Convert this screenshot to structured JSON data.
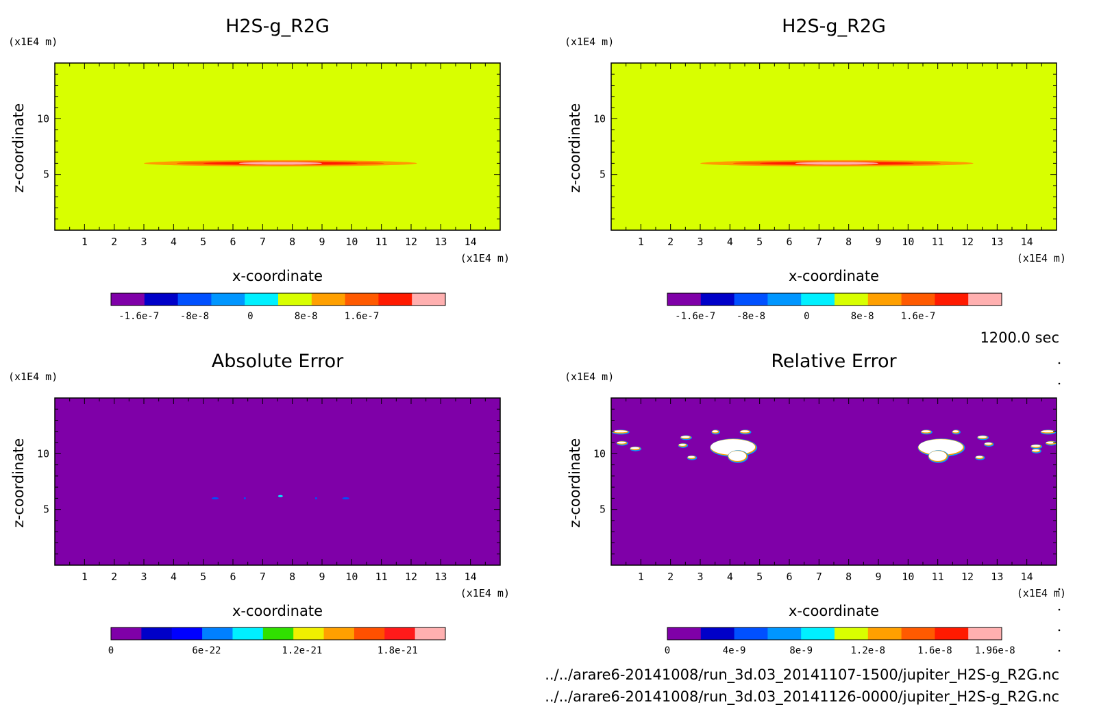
{
  "time_label": "1200.0 sec",
  "files": [
    "../../arare6-20141008/run_3d.03_20141107-1500/jupiter_H2S-g_R2G.nc",
    "../../arare6-20141008/run_3d.03_20141126-0000/jupiter_H2S-g_R2G.nc"
  ],
  "chart_data": [
    {
      "type": "heatmap",
      "title": "H2S-g_R2G",
      "xlabel": "x-coordinate",
      "ylabel": "z-coordinate",
      "x_unit": "(x1E4 m)",
      "y_unit": "(x1E4 m)",
      "xlim": [
        0,
        15
      ],
      "ylim": [
        0,
        15
      ],
      "xticks": [
        "1",
        "2",
        "3",
        "4",
        "5",
        "6",
        "7",
        "8",
        "9",
        "10",
        "11",
        "12",
        "13",
        "14"
      ],
      "yticks": [
        "5",
        "10"
      ],
      "background_color": "#d8ff00",
      "features": [
        {
          "kind": "band",
          "x_center": 7.6,
          "z": 6.0,
          "half_width": 4.6,
          "half_height": 0.28,
          "color": "#ff9a00"
        },
        {
          "kind": "band",
          "x_center": 7.6,
          "z": 6.0,
          "half_width": 3.5,
          "half_height": 0.18,
          "color": "#ff5a00"
        },
        {
          "kind": "band",
          "x_center": 7.6,
          "z": 6.0,
          "half_width": 2.6,
          "half_height": 0.12,
          "color": "#ff1a00"
        },
        {
          "kind": "band",
          "x_center": 7.6,
          "z": 6.0,
          "half_width": 1.4,
          "half_height": 0.06,
          "color": "#ffb0b0"
        }
      ],
      "colorbar": {
        "colors": [
          "#7f00a8",
          "#0000c8",
          "#0050ff",
          "#0096ff",
          "#00f0ff",
          "#d8ff00",
          "#ffa000",
          "#ff5a00",
          "#ff1a00",
          "#ffb0b0"
        ],
        "ticks": [
          {
            "label": "-1.6e-7",
            "value": -1.6e-07
          },
          {
            "label": "-8e-8",
            "value": -8e-08
          },
          {
            "label": "0",
            "value": 0
          },
          {
            "label": "8e-8",
            "value": 8e-08
          },
          {
            "label": "1.6e-7",
            "value": 1.6e-07
          }
        ],
        "range": [
          -2e-07,
          2.8e-07
        ]
      }
    },
    {
      "type": "heatmap",
      "title": "H2S-g_R2G",
      "xlabel": "x-coordinate",
      "ylabel": "z-coordinate",
      "x_unit": "(x1E4 m)",
      "y_unit": "(x1E4 m)",
      "xlim": [
        0,
        15
      ],
      "ylim": [
        0,
        15
      ],
      "xticks": [
        "1",
        "2",
        "3",
        "4",
        "5",
        "6",
        "7",
        "8",
        "9",
        "10",
        "11",
        "12",
        "13",
        "14"
      ],
      "yticks": [
        "5",
        "10"
      ],
      "background_color": "#d8ff00",
      "features": [
        {
          "kind": "band",
          "x_center": 7.6,
          "z": 6.0,
          "half_width": 4.6,
          "half_height": 0.28,
          "color": "#ff9a00"
        },
        {
          "kind": "band",
          "x_center": 7.6,
          "z": 6.0,
          "half_width": 3.5,
          "half_height": 0.18,
          "color": "#ff5a00"
        },
        {
          "kind": "band",
          "x_center": 7.6,
          "z": 6.0,
          "half_width": 2.6,
          "half_height": 0.12,
          "color": "#ff1a00"
        },
        {
          "kind": "band",
          "x_center": 7.6,
          "z": 6.0,
          "half_width": 1.4,
          "half_height": 0.06,
          "color": "#ffb0b0"
        }
      ],
      "colorbar": {
        "colors": [
          "#7f00a8",
          "#0000c8",
          "#0050ff",
          "#0096ff",
          "#00f0ff",
          "#d8ff00",
          "#ffa000",
          "#ff5a00",
          "#ff1a00",
          "#ffb0b0"
        ],
        "ticks": [
          {
            "label": "-1.6e-7",
            "value": -1.6e-07
          },
          {
            "label": "-8e-8",
            "value": -8e-08
          },
          {
            "label": "0",
            "value": 0
          },
          {
            "label": "8e-8",
            "value": 8e-08
          },
          {
            "label": "1.6e-7",
            "value": 1.6e-07
          }
        ],
        "range": [
          -2e-07,
          2.8e-07
        ]
      }
    },
    {
      "type": "heatmap",
      "title": "Absolute Error",
      "xlabel": "x-coordinate",
      "ylabel": "z-coordinate",
      "x_unit": "(x1E4 m)",
      "y_unit": "(x1E4 m)",
      "xlim": [
        0,
        15
      ],
      "ylim": [
        0,
        15
      ],
      "xticks": [
        "1",
        "2",
        "3",
        "4",
        "5",
        "6",
        "7",
        "8",
        "9",
        "10",
        "11",
        "12",
        "13",
        "14"
      ],
      "yticks": [
        "5",
        "10"
      ],
      "background_color": "#7f00a8",
      "features": [
        {
          "kind": "blob",
          "x": 5.4,
          "z": 6.0,
          "rx": 0.12,
          "rz": 0.08,
          "color": "#0050ff"
        },
        {
          "kind": "blob",
          "x": 6.4,
          "z": 6.0,
          "rx": 0.03,
          "rz": 0.03,
          "color": "#0050ff"
        },
        {
          "kind": "blob",
          "x": 7.6,
          "z": 6.2,
          "rx": 0.08,
          "rz": 0.08,
          "color": "#00f0ff"
        },
        {
          "kind": "blob",
          "x": 8.8,
          "z": 6.0,
          "rx": 0.03,
          "rz": 0.03,
          "color": "#0050ff"
        },
        {
          "kind": "blob",
          "x": 9.8,
          "z": 6.0,
          "rx": 0.12,
          "rz": 0.08,
          "color": "#0050ff"
        }
      ],
      "colorbar": {
        "colors": [
          "#7f00a8",
          "#0000c8",
          "#0000ff",
          "#0080ff",
          "#00f0ff",
          "#30e000",
          "#f0f000",
          "#ffa000",
          "#ff5000",
          "#ff1a1a",
          "#ffb0b0"
        ],
        "ticks": [
          {
            "label": "0",
            "value": 0
          },
          {
            "label": "6e-22",
            "value": 6e-22
          },
          {
            "label": "1.2e-21",
            "value": 1.2e-21
          },
          {
            "label": "1.8e-21",
            "value": 1.8e-21
          }
        ],
        "range": [
          0,
          2.1e-21
        ]
      }
    },
    {
      "type": "heatmap",
      "title": "Relative Error",
      "xlabel": "x-coordinate",
      "ylabel": "z-coordinate",
      "x_unit": "(x1E4 m)",
      "y_unit": "(x1E4 m)",
      "xlim": [
        0,
        15
      ],
      "ylim": [
        0,
        15
      ],
      "xticks": [
        "1",
        "2",
        "3",
        "4",
        "5",
        "6",
        "7",
        "8",
        "9",
        "10",
        "11",
        "12",
        "13",
        "14"
      ],
      "yticks": [
        "5",
        "10"
      ],
      "background_color": "#7f00a8",
      "features": [
        {
          "kind": "blob",
          "x": 4.1,
          "z": 10.6,
          "rx": 0.75,
          "rz": 0.7,
          "color": "#ffffff"
        },
        {
          "kind": "blob",
          "x": 4.25,
          "z": 9.8,
          "rx": 0.3,
          "rz": 0.45,
          "color": "#ffffff"
        },
        {
          "kind": "blob",
          "x": 11.1,
          "z": 10.6,
          "rx": 0.75,
          "rz": 0.7,
          "color": "#ffffff"
        },
        {
          "kind": "blob",
          "x": 11.0,
          "z": 9.8,
          "rx": 0.3,
          "rz": 0.45,
          "color": "#ffffff"
        },
        {
          "kind": "blob",
          "x": 0.3,
          "z": 12.0,
          "rx": 0.25,
          "rz": 0.08,
          "color": "#ffffff"
        },
        {
          "kind": "blob",
          "x": 0.35,
          "z": 11.0,
          "rx": 0.15,
          "rz": 0.08,
          "color": "#ffffff"
        },
        {
          "kind": "blob",
          "x": 0.8,
          "z": 10.5,
          "rx": 0.15,
          "rz": 0.08,
          "color": "#ffffff"
        },
        {
          "kind": "blob",
          "x": 2.5,
          "z": 11.5,
          "rx": 0.15,
          "rz": 0.08,
          "color": "#ffffff"
        },
        {
          "kind": "blob",
          "x": 2.4,
          "z": 10.8,
          "rx": 0.12,
          "rz": 0.07,
          "color": "#ffffff"
        },
        {
          "kind": "blob",
          "x": 2.7,
          "z": 9.7,
          "rx": 0.12,
          "rz": 0.07,
          "color": "#ffffff"
        },
        {
          "kind": "blob",
          "x": 3.5,
          "z": 12.0,
          "rx": 0.1,
          "rz": 0.05,
          "color": "#ffffff"
        },
        {
          "kind": "blob",
          "x": 4.5,
          "z": 12.0,
          "rx": 0.15,
          "rz": 0.07,
          "color": "#ffffff"
        },
        {
          "kind": "blob",
          "x": 10.6,
          "z": 12.0,
          "rx": 0.15,
          "rz": 0.07,
          "color": "#ffffff"
        },
        {
          "kind": "blob",
          "x": 11.6,
          "z": 12.0,
          "rx": 0.1,
          "rz": 0.05,
          "color": "#ffffff"
        },
        {
          "kind": "blob",
          "x": 12.5,
          "z": 11.5,
          "rx": 0.15,
          "rz": 0.08,
          "color": "#ffffff"
        },
        {
          "kind": "blob",
          "x": 12.7,
          "z": 10.9,
          "rx": 0.12,
          "rz": 0.07,
          "color": "#ffffff"
        },
        {
          "kind": "blob",
          "x": 12.4,
          "z": 9.7,
          "rx": 0.12,
          "rz": 0.07,
          "color": "#ffffff"
        },
        {
          "kind": "blob",
          "x": 14.3,
          "z": 10.7,
          "rx": 0.15,
          "rz": 0.08,
          "color": "#ffffff"
        },
        {
          "kind": "blob",
          "x": 14.3,
          "z": 10.3,
          "rx": 0.12,
          "rz": 0.07,
          "color": "#ffffff"
        },
        {
          "kind": "blob",
          "x": 14.7,
          "z": 12.0,
          "rx": 0.22,
          "rz": 0.08,
          "color": "#ffffff"
        },
        {
          "kind": "blob",
          "x": 14.8,
          "z": 11.0,
          "rx": 0.15,
          "rz": 0.08,
          "color": "#ffffff"
        }
      ],
      "colorbar": {
        "colors": [
          "#7f00a8",
          "#0000c8",
          "#0050ff",
          "#0096ff",
          "#00f0ff",
          "#d8ff00",
          "#ffa000",
          "#ff5a00",
          "#ff1a00",
          "#ffb0b0"
        ],
        "ticks": [
          {
            "label": "0",
            "value": 0
          },
          {
            "label": "4e-9",
            "value": 4e-09
          },
          {
            "label": "8e-9",
            "value": 8e-09
          },
          {
            "label": "1.2e-8",
            "value": 1.2e-08
          },
          {
            "label": "1.6e-8",
            "value": 1.6e-08
          },
          {
            "label": "1.96e-8",
            "value": 1.96e-08
          }
        ],
        "range": [
          0,
          2e-08
        ]
      }
    }
  ]
}
